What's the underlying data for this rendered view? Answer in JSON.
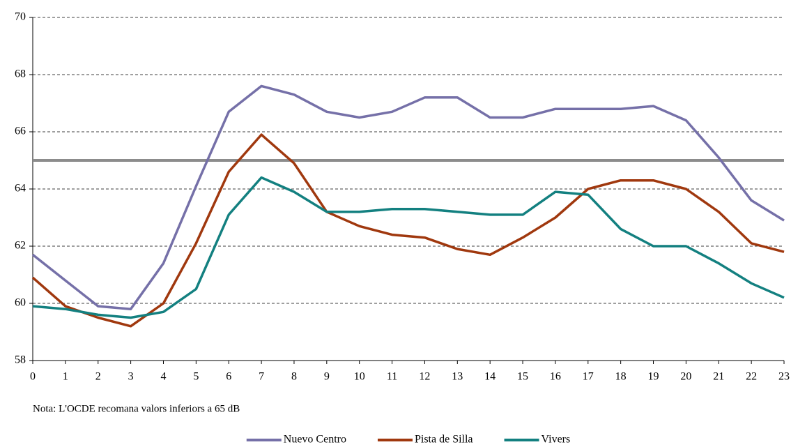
{
  "chart_data": {
    "type": "line",
    "x": [
      0,
      1,
      2,
      3,
      4,
      5,
      6,
      7,
      8,
      9,
      10,
      11,
      12,
      13,
      14,
      15,
      16,
      17,
      18,
      19,
      20,
      21,
      22,
      23
    ],
    "xlim": [
      0,
      23
    ],
    "xticks": [
      0,
      1,
      2,
      3,
      4,
      5,
      6,
      7,
      8,
      9,
      10,
      11,
      12,
      13,
      14,
      15,
      16,
      17,
      18,
      19,
      20,
      21,
      22,
      23
    ],
    "ylim": [
      58,
      70
    ],
    "yticks": [
      58,
      60,
      62,
      64,
      66,
      68,
      70
    ],
    "grid": true,
    "reference_line": 65,
    "reference_color": "#8c8c8c",
    "annotation": "Nota: L'OCDE recomana valors inferiors a 65 dB",
    "legend": "bottom",
    "series": [
      {
        "name": "Nuevo Centro",
        "color": "#7570a8",
        "values": [
          61.7,
          60.8,
          59.9,
          59.8,
          61.4,
          64.1,
          66.7,
          67.6,
          67.3,
          66.7,
          66.5,
          66.7,
          67.2,
          67.2,
          66.5,
          66.5,
          66.8,
          66.8,
          66.8,
          66.9,
          66.4,
          65.1,
          63.6,
          62.9
        ]
      },
      {
        "name": "Pista de Silla",
        "color": "#a0380e",
        "values": [
          60.9,
          59.9,
          59.5,
          59.2,
          60.0,
          62.1,
          64.6,
          65.9,
          64.9,
          63.2,
          62.7,
          62.4,
          62.3,
          61.9,
          61.7,
          62.3,
          63.0,
          64.0,
          64.3,
          64.3,
          64.0,
          63.2,
          62.1,
          61.8
        ]
      },
      {
        "name": "Vivers",
        "color": "#138080",
        "values": [
          59.9,
          59.8,
          59.6,
          59.5,
          59.7,
          60.5,
          63.1,
          64.4,
          63.9,
          63.2,
          63.2,
          63.3,
          63.3,
          63.2,
          63.1,
          63.1,
          63.9,
          63.8,
          62.6,
          62.0,
          62.0,
          61.4,
          60.7,
          60.2
        ]
      }
    ]
  }
}
